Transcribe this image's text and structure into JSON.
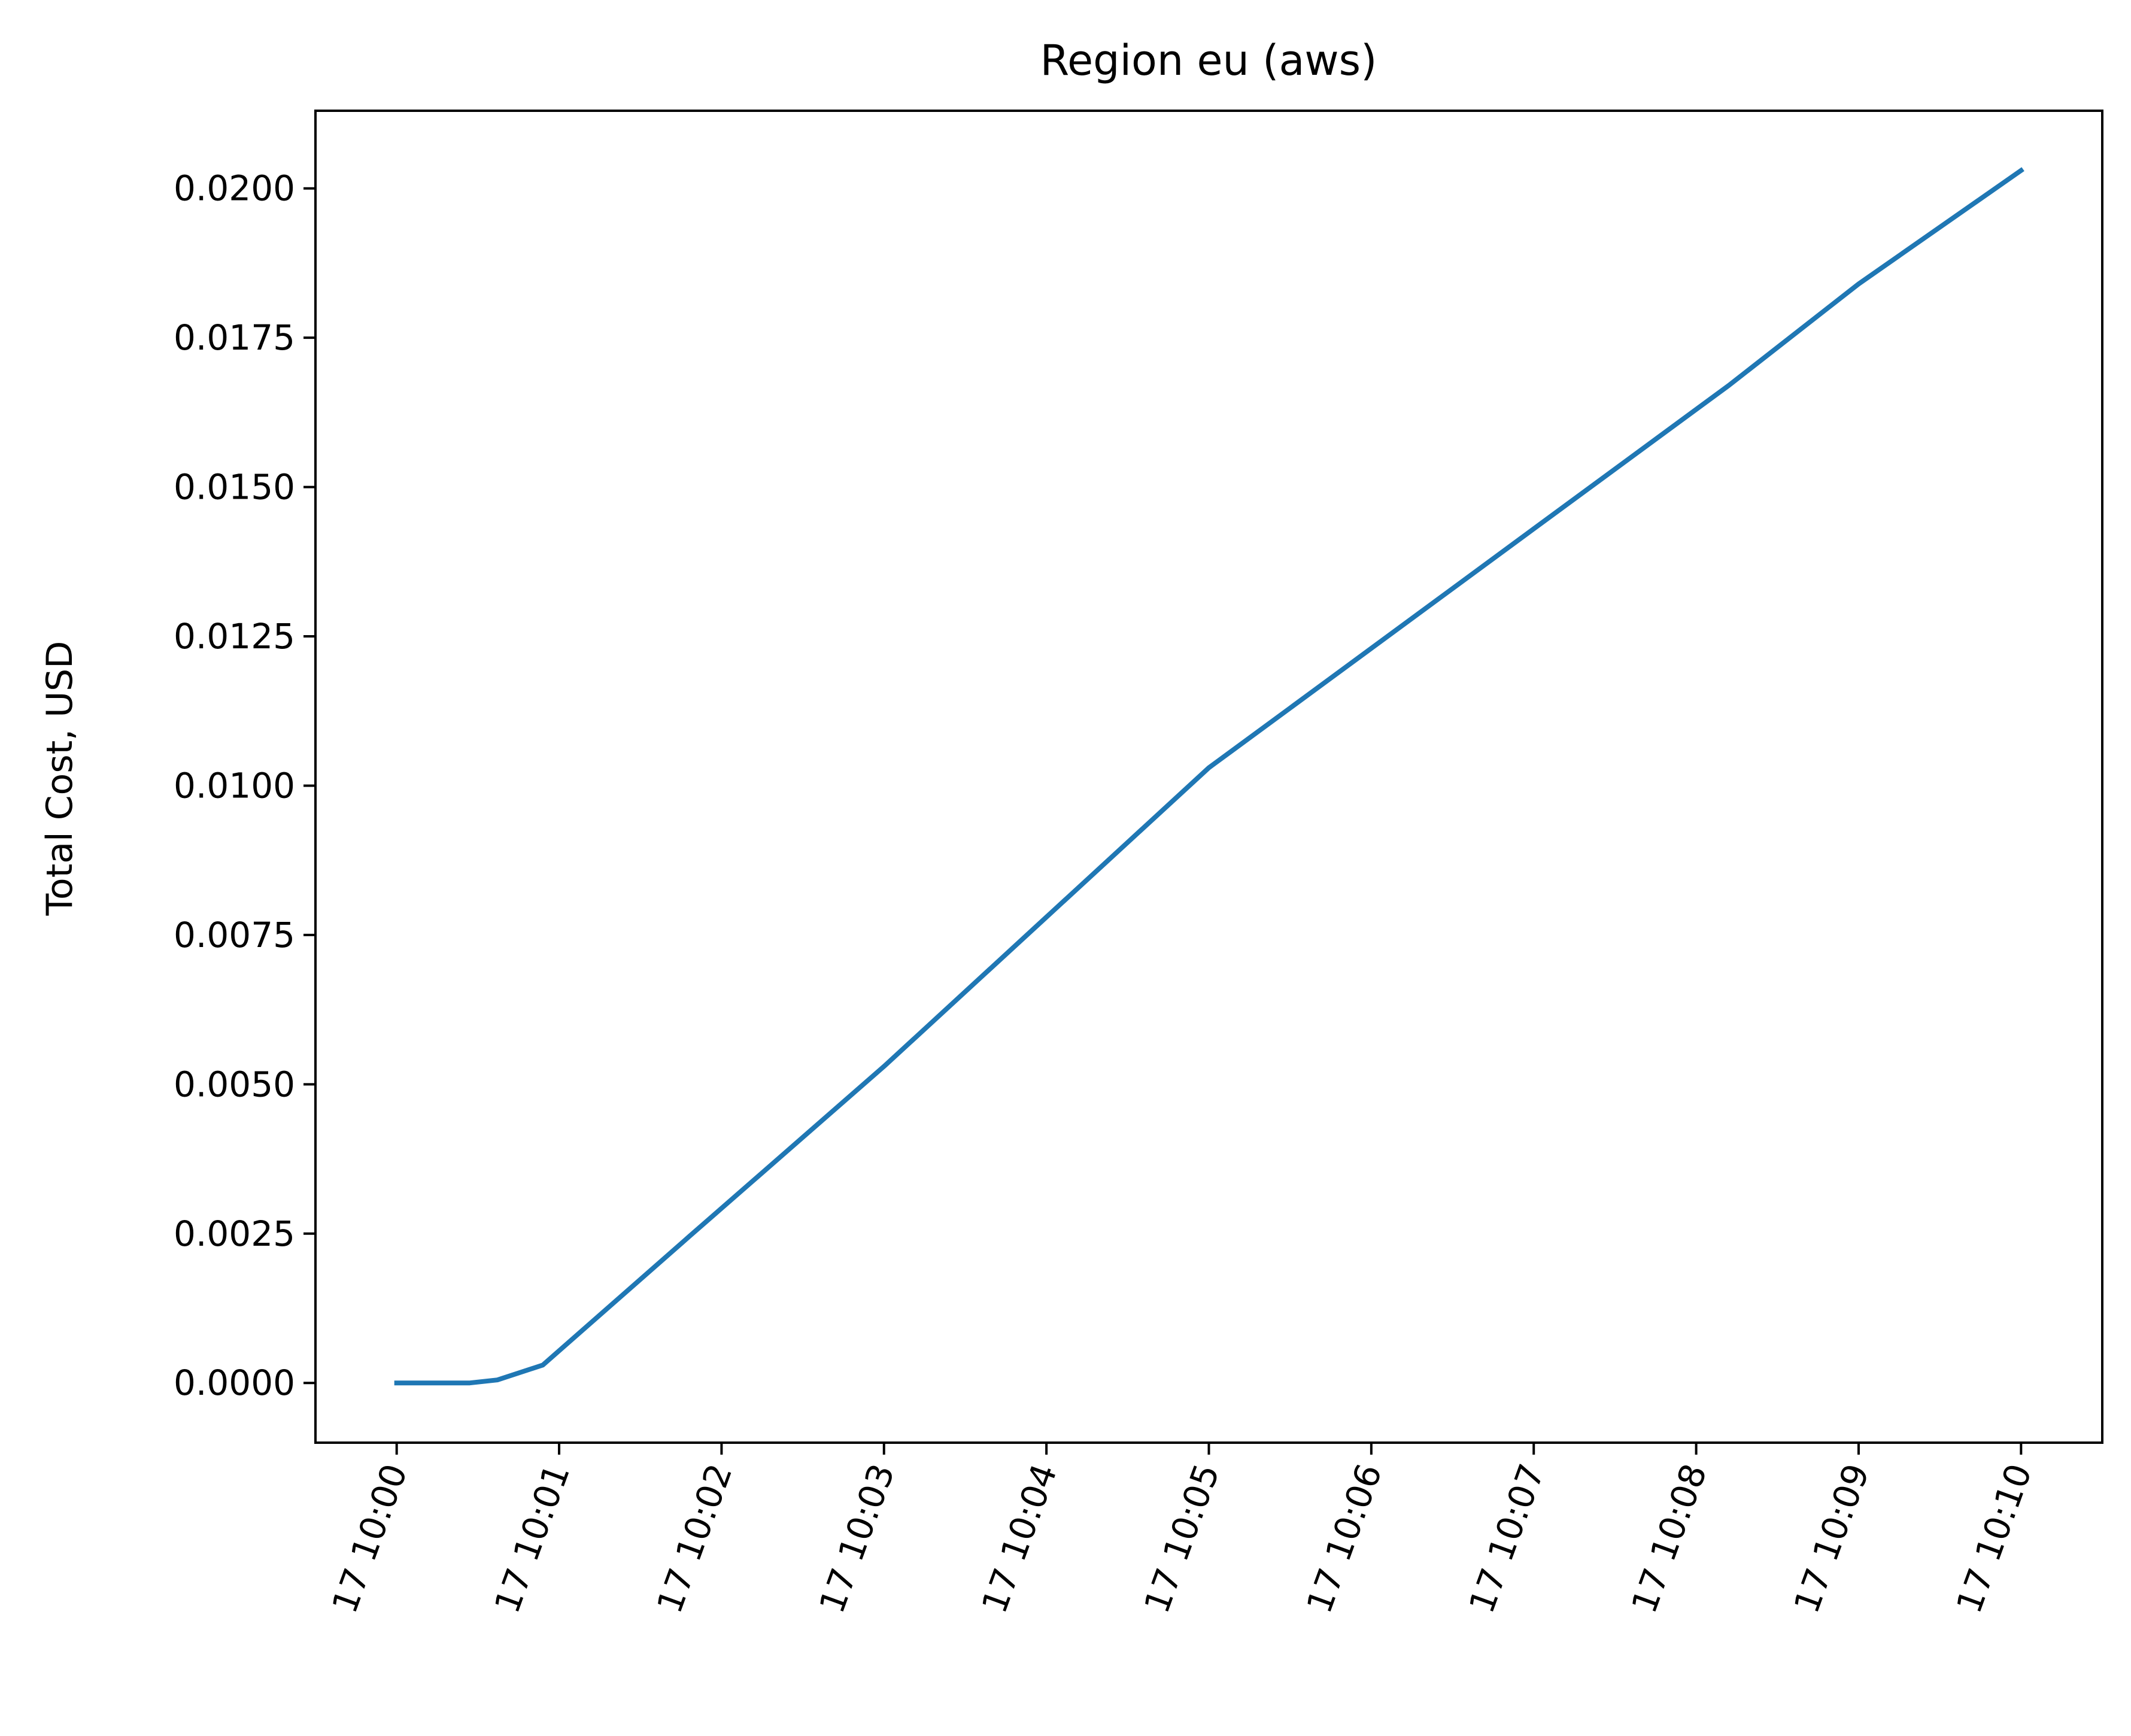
{
  "chart_data": {
    "type": "line",
    "title": "Region eu (aws)",
    "xlabel": "",
    "ylabel": "Total Cost, USD",
    "xlim_minutes": [
      -0.5,
      10.5
    ],
    "ylim": [
      -0.001,
      0.0213
    ],
    "grid": false,
    "legend": "none",
    "x_ticks": [
      {
        "value": 0,
        "label": "17 10:00"
      },
      {
        "value": 1,
        "label": "17 10:01"
      },
      {
        "value": 2,
        "label": "17 10:02"
      },
      {
        "value": 3,
        "label": "17 10:03"
      },
      {
        "value": 4,
        "label": "17 10:04"
      },
      {
        "value": 5,
        "label": "17 10:05"
      },
      {
        "value": 6,
        "label": "17 10:06"
      },
      {
        "value": 7,
        "label": "17 10:07"
      },
      {
        "value": 8,
        "label": "17 10:08"
      },
      {
        "value": 9,
        "label": "17 10:09"
      },
      {
        "value": 10,
        "label": "17 10:10"
      }
    ],
    "y_ticks": [
      {
        "value": 0.0,
        "label": "0.0000"
      },
      {
        "value": 0.0025,
        "label": "0.0025"
      },
      {
        "value": 0.005,
        "label": "0.0050"
      },
      {
        "value": 0.0075,
        "label": "0.0075"
      },
      {
        "value": 0.01,
        "label": "0.0100"
      },
      {
        "value": 0.0125,
        "label": "0.0125"
      },
      {
        "value": 0.015,
        "label": "0.0150"
      },
      {
        "value": 0.0175,
        "label": "0.0175"
      },
      {
        "value": 0.02,
        "label": "0.0200"
      }
    ],
    "series": [
      {
        "name": "Total Cost",
        "color": "#1f77b4",
        "x": [
          0,
          0.45,
          0.62,
          0.9,
          1.8,
          2.2,
          3.0,
          4.0,
          5.0,
          5.15,
          5.5,
          6.0,
          7.0,
          8.0,
          8.2,
          9.0,
          10.0
        ],
        "y": [
          0,
          0,
          5e-05,
          0.0003,
          0.00245,
          0.0034,
          0.0053,
          0.0078,
          0.0103,
          0.0106,
          0.0113,
          0.0123,
          0.0143,
          0.0163,
          0.0167,
          0.0184,
          0.0203
        ]
      }
    ]
  }
}
